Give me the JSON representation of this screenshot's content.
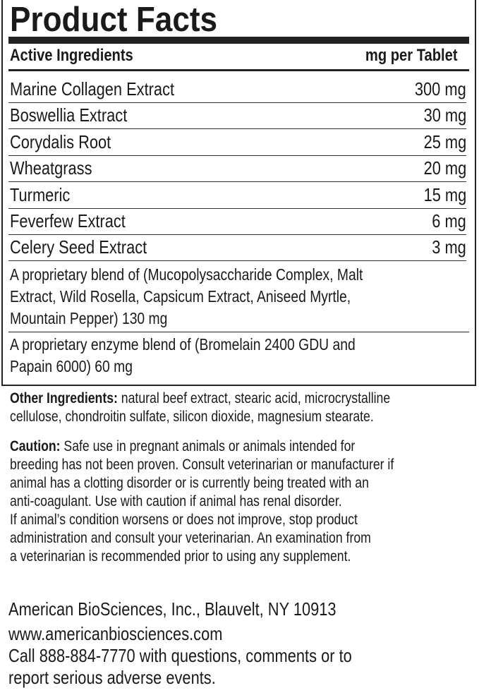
{
  "title": "Product Facts",
  "header": {
    "left": "Active Ingredients",
    "right": "mg per Tablet"
  },
  "ingredients": [
    {
      "name": "Marine Collagen Extract",
      "amount": "300 mg"
    },
    {
      "name": "Boswellia Extract",
      "amount": "30 mg"
    },
    {
      "name": "Corydalis Root",
      "amount": "25 mg"
    },
    {
      "name": "Wheatgrass",
      "amount": "20 mg"
    },
    {
      "name": "Turmeric",
      "amount": "15 mg"
    },
    {
      "name": "Feverfew Extract",
      "amount": "6 mg"
    },
    {
      "name": "Celery Seed Extract",
      "amount": "3 mg"
    }
  ],
  "blends": [
    [
      "A proprietary blend of (Mucopolysaccharide Complex, Malt",
      "Extract, Wild Rosella, Capsicum Extract, Aniseed Myrtle,",
      "Mountain Pepper) 130 mg"
    ],
    [
      "A proprietary enzyme blend of (Bromelain 2400 GDU and",
      "Papain 6000) 60 mg"
    ]
  ],
  "other": {
    "label": "Other Ingredients:",
    "lines": [
      " natural beef extract, stearic acid, microcrystalline",
      "cellulose, chondroitin sulfate, silicon dioxide, magnesium stearate."
    ]
  },
  "caution": {
    "label": "Caution:",
    "lines": [
      " Safe use in pregnant animals or animals intended for",
      "breeding has not been proven. Consult veterinarian or manufacturer if",
      "animal has a clotting disorder or is currently being treated with an",
      "anti-coagulant. Use with caution if animal has renal disorder.",
      "If animal’s condition worsens or does not improve, stop product",
      "administration and consult your veterinarian. An examination from",
      "a veterinarian is recommended prior to using any supplement."
    ]
  },
  "footer": {
    "address": "American BioSciences, Inc., Blauvelt, NY 10913",
    "website": "www.americanbiosciences.com",
    "contact": [
      "Call 888-884-7770 with questions, comments or to",
      "report serious adverse events."
    ]
  }
}
